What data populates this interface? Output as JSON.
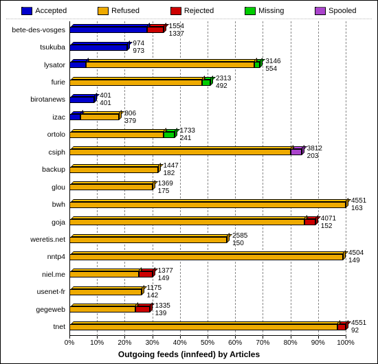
{
  "title": "Outgoing feeds (innfeed) by Articles",
  "background_color": "#ffffff",
  "grid_color": "#888888",
  "tick_font_size": 10,
  "label_font_size": 10.5,
  "title_font_size": 12,
  "legend": [
    {
      "name": "Accepted",
      "color": "#0000cc"
    },
    {
      "name": "Refused",
      "color": "#eeaa00"
    },
    {
      "name": "Rejected",
      "color": "#cc0000"
    },
    {
      "name": "Missing",
      "color": "#00cc00"
    },
    {
      "name": "Spooled",
      "color": "#aa44cc"
    }
  ],
  "x": {
    "min": 0,
    "max": 100,
    "tick_step": 10,
    "tick_suffix": "%"
  },
  "max_total": 4551,
  "rows": [
    {
      "label": "bete-des-vosges",
      "top_val": 1554,
      "bot_val": 1337,
      "segments": [
        {
          "cat": "Accepted",
          "pct": 28
        },
        {
          "cat": "Rejected",
          "pct": 6
        }
      ]
    },
    {
      "label": "tsukuba",
      "top_val": 974,
      "bot_val": 973,
      "segments": [
        {
          "cat": "Accepted",
          "pct": 21
        }
      ]
    },
    {
      "label": "lysator",
      "top_val": 3146,
      "bot_val": 554,
      "segments": [
        {
          "cat": "Accepted",
          "pct": 6
        },
        {
          "cat": "Refused",
          "pct": 61
        },
        {
          "cat": "Missing",
          "pct": 2
        }
      ]
    },
    {
      "label": "furie",
      "top_val": 2313,
      "bot_val": 492,
      "segments": [
        {
          "cat": "Refused",
          "pct": 48
        },
        {
          "cat": "Missing",
          "pct": 3
        }
      ]
    },
    {
      "label": "birotanews",
      "top_val": 401,
      "bot_val": 401,
      "segments": [
        {
          "cat": "Accepted",
          "pct": 9
        }
      ]
    },
    {
      "label": "izac",
      "top_val": 806,
      "bot_val": 379,
      "segments": [
        {
          "cat": "Accepted",
          "pct": 4
        },
        {
          "cat": "Refused",
          "pct": 14
        }
      ]
    },
    {
      "label": "ortolo",
      "top_val": 1733,
      "bot_val": 241,
      "segments": [
        {
          "cat": "Refused",
          "pct": 34
        },
        {
          "cat": "Missing",
          "pct": 4
        }
      ]
    },
    {
      "label": "csiph",
      "top_val": 3812,
      "bot_val": 203,
      "segments": [
        {
          "cat": "Refused",
          "pct": 80
        },
        {
          "cat": "Spooled",
          "pct": 4
        }
      ]
    },
    {
      "label": "backup",
      "top_val": 1447,
      "bot_val": 182,
      "segments": [
        {
          "cat": "Refused",
          "pct": 32
        }
      ]
    },
    {
      "label": "glou",
      "top_val": 1369,
      "bot_val": 175,
      "segments": [
        {
          "cat": "Refused",
          "pct": 30
        }
      ]
    },
    {
      "label": "bwh",
      "top_val": 4551,
      "bot_val": 163,
      "segments": [
        {
          "cat": "Refused",
          "pct": 100
        }
      ]
    },
    {
      "label": "goja",
      "top_val": 4071,
      "bot_val": 152,
      "segments": [
        {
          "cat": "Refused",
          "pct": 85
        },
        {
          "cat": "Rejected",
          "pct": 4
        }
      ]
    },
    {
      "label": "weretis.net",
      "top_val": 2585,
      "bot_val": 150,
      "segments": [
        {
          "cat": "Refused",
          "pct": 57
        }
      ]
    },
    {
      "label": "nntp4",
      "top_val": 4504,
      "bot_val": 149,
      "segments": [
        {
          "cat": "Refused",
          "pct": 99
        }
      ]
    },
    {
      "label": "niel.me",
      "top_val": 1377,
      "bot_val": 149,
      "segments": [
        {
          "cat": "Refused",
          "pct": 25
        },
        {
          "cat": "Rejected",
          "pct": 5
        }
      ]
    },
    {
      "label": "usenet-fr",
      "top_val": 1175,
      "bot_val": 142,
      "segments": [
        {
          "cat": "Refused",
          "pct": 26
        }
      ]
    },
    {
      "label": "gegeweb",
      "top_val": 1335,
      "bot_val": 139,
      "segments": [
        {
          "cat": "Refused",
          "pct": 24
        },
        {
          "cat": "Rejected",
          "pct": 5
        }
      ]
    },
    {
      "label": "tnet",
      "top_val": 4551,
      "bot_val": 92,
      "segments": [
        {
          "cat": "Refused",
          "pct": 97
        },
        {
          "cat": "Rejected",
          "pct": 3
        }
      ]
    }
  ]
}
